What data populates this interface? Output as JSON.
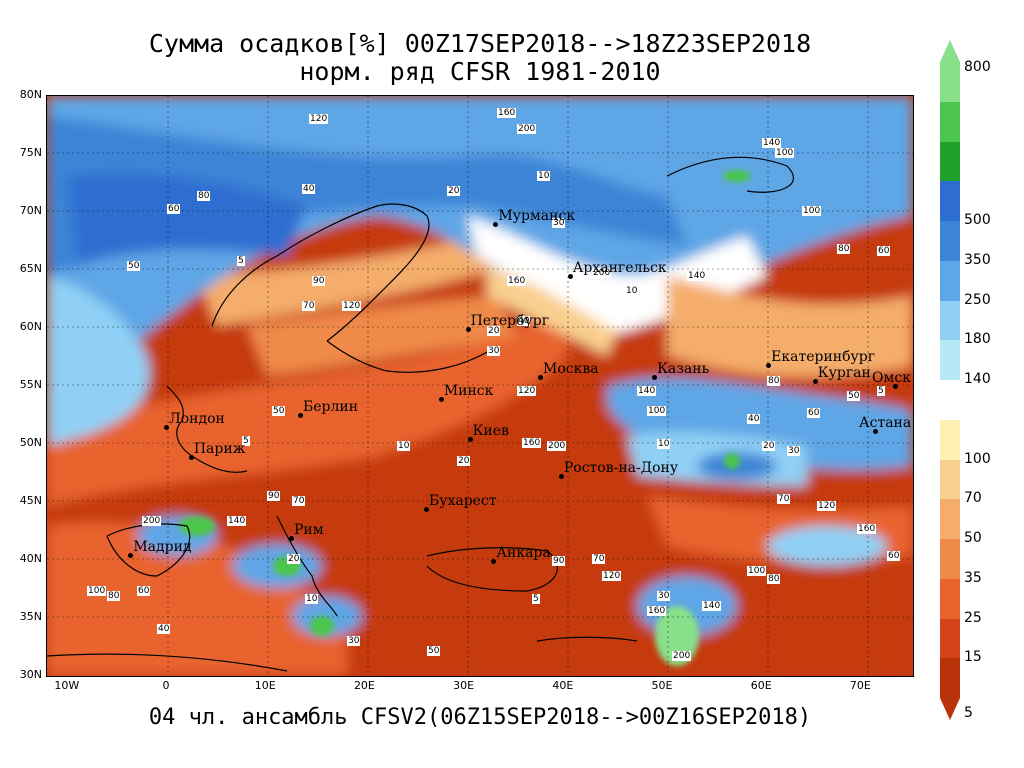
{
  "header": {
    "title_line1": "Сумма осадков[%] 00Z17SEP2018-->18Z23SEP2018",
    "title_line2": "норм. ряд CFSR 1981-2010"
  },
  "footer": {
    "text": "04 чл. ансамбль CFSV2(06Z15SEP2018-->00Z16SEP2018)"
  },
  "axes": {
    "lat_labels": [
      {
        "t": "80N",
        "v": 80
      },
      {
        "t": "75N",
        "v": 75
      },
      {
        "t": "70N",
        "v": 70
      },
      {
        "t": "65N",
        "v": 65
      },
      {
        "t": "60N",
        "v": 60
      },
      {
        "t": "55N",
        "v": 55
      },
      {
        "t": "50N",
        "v": 50
      },
      {
        "t": "45N",
        "v": 45
      },
      {
        "t": "40N",
        "v": 40
      },
      {
        "t": "35N",
        "v": 35
      },
      {
        "t": "30N",
        "v": 30
      }
    ],
    "lon_labels": [
      {
        "t": "10W",
        "v": -10
      },
      {
        "t": "0",
        "v": 0
      },
      {
        "t": "10E",
        "v": 10
      },
      {
        "t": "20E",
        "v": 20
      },
      {
        "t": "30E",
        "v": 30
      },
      {
        "t": "40E",
        "v": 40
      },
      {
        "t": "50E",
        "v": 50
      },
      {
        "t": "60E",
        "v": 60
      },
      {
        "t": "70E",
        "v": 70
      }
    ]
  },
  "cities": [
    {
      "name": "Мурманск",
      "lat": 69.0,
      "lon": 33.1
    },
    {
      "name": "Архангельск",
      "lat": 64.5,
      "lon": 40.6
    },
    {
      "name": "Петербург",
      "lat": 59.9,
      "lon": 30.3
    },
    {
      "name": "Москва",
      "lat": 55.8,
      "lon": 37.6
    },
    {
      "name": "Казань",
      "lat": 55.8,
      "lon": 49.1
    },
    {
      "name": "Екатеринбург",
      "lat": 56.8,
      "lon": 60.6
    },
    {
      "name": "Курган",
      "lat": 55.4,
      "lon": 65.3
    },
    {
      "name": "Омск",
      "lat": 55.0,
      "lon": 73.4
    },
    {
      "name": "Астана",
      "lat": 51.1,
      "lon": 71.4
    },
    {
      "name": "Минск",
      "lat": 53.9,
      "lon": 27.6
    },
    {
      "name": "Киев",
      "lat": 50.4,
      "lon": 30.5
    },
    {
      "name": "Берлин",
      "lat": 52.5,
      "lon": 13.4
    },
    {
      "name": "Лондон",
      "lat": 51.5,
      "lon": -0.1
    },
    {
      "name": "Париж",
      "lat": 48.9,
      "lon": 2.4
    },
    {
      "name": "Ростов-на-Дону",
      "lat": 47.2,
      "lon": 39.7
    },
    {
      "name": "Бухарест",
      "lat": 44.4,
      "lon": 26.1
    },
    {
      "name": "Рим",
      "lat": 41.9,
      "lon": 12.5
    },
    {
      "name": "Мадрид",
      "lat": 40.4,
      "lon": -3.7
    },
    {
      "name": "Анкара",
      "lat": 39.9,
      "lon": 32.9
    }
  ],
  "legend": {
    "segments": [
      {
        "color": "#b8320a"
      },
      {
        "color": "#d4431a"
      },
      {
        "color": "#e8642e"
      },
      {
        "color": "#f08a4a"
      },
      {
        "color": "#f5ad6c"
      },
      {
        "color": "#f9cf8f"
      },
      {
        "color": "#fdf0b0"
      },
      {
        "color": "#ffffff"
      },
      {
        "color": "#b6e9f5"
      },
      {
        "color": "#90d0f5"
      },
      {
        "color": "#5fa6e6"
      },
      {
        "color": "#3d84d6"
      },
      {
        "color": "#2d6ed0"
      },
      {
        "color": "#21a02c"
      },
      {
        "color": "#4cc64c"
      },
      {
        "color": "#88e08a"
      }
    ],
    "ticks": [
      "5",
      "15",
      "25",
      "35",
      "50",
      "70",
      "100",
      "140",
      "180",
      "250",
      "350",
      "500",
      "800"
    ]
  },
  "contour_labels": [
    "120",
    "160",
    "200",
    "140",
    "100",
    "80",
    "60",
    "40",
    "20",
    "10",
    "30",
    "50",
    "5",
    "90",
    "70"
  ]
}
